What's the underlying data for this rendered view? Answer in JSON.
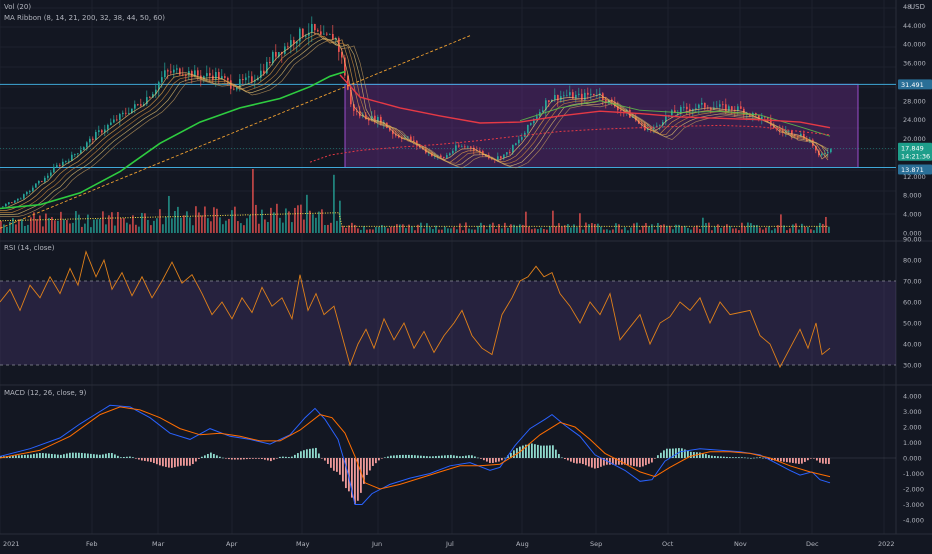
{
  "legend": {
    "vol": "Vol (20)",
    "ma_ribbon": "MA Ribbon (8, 14, 21, 200, 32, 38, 44, 50, 60)",
    "rsi": "RSI (14, close)",
    "macd": "MACD (12, 26, close, 9)"
  },
  "currency": "USD",
  "colors": {
    "background": "#131722",
    "grid": "#1e222d",
    "up": "#26a69a",
    "down": "#ef5350",
    "ma_green": "#2ecc40",
    "ma_red": "#e53945",
    "rsi_line": "#e0801a",
    "macd_line": "#2962ff",
    "signal_line": "#ff6d00",
    "range_box": "#6a2a88",
    "level_line": "#3fa8d8"
  },
  "chart_data": [
    {
      "type": "candlestick",
      "panel": "price",
      "x_labels": [
        "2021",
        "Feb",
        "Mar",
        "Apr",
        "May",
        "Jun",
        "Jul",
        "Aug",
        "Sep",
        "Oct",
        "Nov",
        "Dec",
        "2022"
      ],
      "y_ticks": [
        "48",
        "44.000",
        "40.000",
        "36.000",
        "32.000",
        "28.000",
        "24.000",
        "20.000",
        "16.000",
        "12.000",
        "8.000",
        "4.000",
        "0.000"
      ],
      "ylim": [
        0,
        48
      ],
      "price_points": [
        [
          0,
          5.6
        ],
        [
          10,
          6.5
        ],
        [
          20,
          7.5
        ],
        [
          28,
          8.8
        ],
        [
          36,
          10.5
        ],
        [
          44,
          11.5
        ],
        [
          52,
          13.5
        ],
        [
          60,
          14.8
        ],
        [
          70,
          16.0
        ],
        [
          82,
          18.2
        ],
        [
          96,
          21.0
        ],
        [
          112,
          23.5
        ],
        [
          128,
          26.0
        ],
        [
          140,
          27.5
        ],
        [
          152,
          30.0
        ],
        [
          164,
          33.8
        ],
        [
          180,
          34.5
        ],
        [
          200,
          33.2
        ],
        [
          215,
          33.5
        ],
        [
          232,
          31.2
        ],
        [
          250,
          32.5
        ],
        [
          262,
          34.5
        ],
        [
          274,
          38.0
        ],
        [
          286,
          39.8
        ],
        [
          298,
          42.0
        ],
        [
          310,
          43.2
        ],
        [
          322,
          41.0
        ],
        [
          334,
          41.8
        ],
        [
          342,
          36.0
        ],
        [
          350,
          27.0
        ],
        [
          358,
          25.0
        ],
        [
          368,
          24.5
        ],
        [
          380,
          23.8
        ],
        [
          394,
          20.8
        ],
        [
          408,
          20.0
        ],
        [
          420,
          18.0
        ],
        [
          432,
          16.5
        ],
        [
          442,
          15.8
        ],
        [
          456,
          18.2
        ],
        [
          470,
          18.3
        ],
        [
          484,
          16.5
        ],
        [
          494,
          15.8
        ],
        [
          506,
          16.8
        ],
        [
          520,
          20.0
        ],
        [
          534,
          24.5
        ],
        [
          548,
          28.5
        ],
        [
          564,
          29.2
        ],
        [
          580,
          28.8
        ],
        [
          596,
          29.8
        ],
        [
          610,
          27.5
        ],
        [
          622,
          26.0
        ],
        [
          632,
          24.5
        ],
        [
          640,
          22.8
        ],
        [
          652,
          21.8
        ],
        [
          662,
          24.2
        ],
        [
          676,
          25.8
        ],
        [
          690,
          26.5
        ],
        [
          706,
          27.0
        ],
        [
          722,
          26.5
        ],
        [
          738,
          26.3
        ],
        [
          752,
          25.0
        ],
        [
          766,
          23.8
        ],
        [
          776,
          21.8
        ],
        [
          786,
          21.5
        ],
        [
          798,
          21.0
        ],
        [
          810,
          19.5
        ],
        [
          818,
          16.0
        ],
        [
          826,
          17.5
        ],
        [
          832,
          17.8
        ]
      ],
      "ma_green_points": [
        [
          0,
          5.2
        ],
        [
          40,
          6.0
        ],
        [
          80,
          8.5
        ],
        [
          120,
          13.0
        ],
        [
          160,
          19.0
        ],
        [
          200,
          23.5
        ],
        [
          240,
          26.5
        ],
        [
          280,
          28.5
        ],
        [
          310,
          31.0
        ],
        [
          330,
          33.2
        ],
        [
          345,
          34.2
        ]
      ],
      "ma_red_points": [
        [
          340,
          33.5
        ],
        [
          360,
          28.8
        ],
        [
          400,
          26.5
        ],
        [
          440,
          24.8
        ],
        [
          480,
          23.3
        ],
        [
          520,
          23.5
        ],
        [
          560,
          24.8
        ],
        [
          600,
          25.8
        ],
        [
          640,
          25.3
        ],
        [
          680,
          24.6
        ],
        [
          720,
          24.3
        ],
        [
          760,
          24.0
        ],
        [
          800,
          23.5
        ],
        [
          830,
          22.3
        ]
      ],
      "ma_red_dotted_points": [
        [
          310,
          15.0
        ],
        [
          330,
          16.5
        ],
        [
          360,
          17.5
        ],
        [
          400,
          18.2
        ],
        [
          440,
          18.8
        ],
        [
          480,
          19.6
        ],
        [
          520,
          20.6
        ],
        [
          560,
          21.5
        ],
        [
          600,
          22.0
        ],
        [
          640,
          22.3
        ],
        [
          680,
          22.6
        ],
        [
          720,
          22.8
        ],
        [
          760,
          22.5
        ],
        [
          800,
          21.5
        ],
        [
          830,
          20.8
        ]
      ],
      "trendline": {
        "from": [
          0,
          1.0
        ],
        "to": [
          470,
          41.8
        ],
        "style": "dashed"
      },
      "levels": [
        31.491,
        13.871
      ],
      "range_box": {
        "x_from": 345,
        "x_to": 858,
        "y_low": 13.871,
        "y_high": 31.491
      },
      "price_tags": {
        "upper": "31.491",
        "current": "17.849",
        "countdown": "14:21:36",
        "lower": "13.871"
      }
    },
    {
      "type": "bar",
      "panel": "volume",
      "volume_seed": 7,
      "note_ma": "volume moving average shown as a dotted yellow line"
    },
    {
      "type": "line",
      "panel": "rsi",
      "y_ticks": [
        "90.00",
        "80.00",
        "70.00",
        "60.00",
        "50.00",
        "40.00",
        "30.00"
      ],
      "ylim": [
        24,
        92
      ],
      "levels": [
        70,
        30
      ],
      "rsi_points": [
        [
          0,
          60
        ],
        [
          10,
          66
        ],
        [
          20,
          56
        ],
        [
          30,
          68
        ],
        [
          40,
          62
        ],
        [
          50,
          72
        ],
        [
          60,
          64
        ],
        [
          70,
          76
        ],
        [
          78,
          68
        ],
        [
          86,
          84
        ],
        [
          96,
          72
        ],
        [
          104,
          80
        ],
        [
          112,
          66
        ],
        [
          122,
          74
        ],
        [
          132,
          63
        ],
        [
          142,
          72
        ],
        [
          152,
          62
        ],
        [
          162,
          70
        ],
        [
          172,
          79
        ],
        [
          182,
          69
        ],
        [
          192,
          73
        ],
        [
          202,
          64
        ],
        [
          212,
          54
        ],
        [
          222,
          60
        ],
        [
          232,
          52
        ],
        [
          242,
          62
        ],
        [
          252,
          55
        ],
        [
          262,
          67
        ],
        [
          272,
          58
        ],
        [
          282,
          62
        ],
        [
          292,
          52
        ],
        [
          300,
          73
        ],
        [
          308,
          56
        ],
        [
          316,
          64
        ],
        [
          324,
          54
        ],
        [
          334,
          58
        ],
        [
          342,
          44
        ],
        [
          350,
          30
        ],
        [
          358,
          40
        ],
        [
          366,
          47
        ],
        [
          374,
          38
        ],
        [
          384,
          52
        ],
        [
          394,
          42
        ],
        [
          404,
          50
        ],
        [
          414,
          38
        ],
        [
          424,
          46
        ],
        [
          434,
          36
        ],
        [
          444,
          44
        ],
        [
          454,
          50
        ],
        [
          462,
          56
        ],
        [
          472,
          44
        ],
        [
          482,
          38
        ],
        [
          492,
          35
        ],
        [
          502,
          54
        ],
        [
          512,
          62
        ],
        [
          520,
          70
        ],
        [
          528,
          72
        ],
        [
          536,
          77
        ],
        [
          544,
          72
        ],
        [
          552,
          74
        ],
        [
          560,
          64
        ],
        [
          570,
          58
        ],
        [
          580,
          50
        ],
        [
          590,
          60
        ],
        [
          600,
          54
        ],
        [
          610,
          64
        ],
        [
          620,
          42
        ],
        [
          630,
          48
        ],
        [
          640,
          54
        ],
        [
          650,
          40
        ],
        [
          660,
          50
        ],
        [
          670,
          53
        ],
        [
          680,
          60
        ],
        [
          690,
          56
        ],
        [
          700,
          62
        ],
        [
          710,
          50
        ],
        [
          720,
          60
        ],
        [
          730,
          54
        ],
        [
          740,
          55
        ],
        [
          750,
          56
        ],
        [
          760,
          44
        ],
        [
          770,
          40
        ],
        [
          780,
          29
        ],
        [
          790,
          38
        ],
        [
          800,
          47
        ],
        [
          808,
          38
        ],
        [
          816,
          50
        ],
        [
          822,
          35
        ],
        [
          830,
          38
        ]
      ]
    },
    {
      "type": "line",
      "panel": "macd",
      "y_ticks": [
        "4.000",
        "3.000",
        "2.000",
        "1.000",
        "0.000",
        "-1.000",
        "-2.000",
        "-3.000",
        "-4.000"
      ],
      "ylim": [
        -4.4,
        4.4
      ],
      "series": [
        {
          "name": "",
          "points": [
            [
              0,
              0.1
            ],
            [
              30,
              0.6
            ],
            [
              60,
              1.3
            ],
            [
              80,
              2.2
            ],
            [
              100,
              3.0
            ],
            [
              110,
              3.4
            ],
            [
              130,
              3.3
            ],
            [
              150,
              2.6
            ],
            [
              170,
              1.6
            ],
            [
              190,
              1.2
            ],
            [
              210,
              1.9
            ],
            [
              230,
              1.4
            ],
            [
              250,
              1.2
            ],
            [
              270,
              0.9
            ],
            [
              290,
              1.5
            ],
            [
              305,
              2.6
            ],
            [
              315,
              3.2
            ],
            [
              325,
              2.5
            ],
            [
              338,
              1.2
            ],
            [
              348,
              -1.0
            ],
            [
              355,
              -3.0
            ],
            [
              362,
              -3.0
            ],
            [
              372,
              -2.3
            ],
            [
              390,
              -1.7
            ],
            [
              410,
              -1.3
            ],
            [
              430,
              -1.0
            ],
            [
              450,
              -0.5
            ],
            [
              470,
              -0.3
            ],
            [
              490,
              -0.8
            ],
            [
              500,
              -0.6
            ],
            [
              515,
              0.8
            ],
            [
              530,
              1.9
            ],
            [
              545,
              2.5
            ],
            [
              552,
              2.8
            ],
            [
              565,
              2.1
            ],
            [
              580,
              1.4
            ],
            [
              595,
              0.2
            ],
            [
              610,
              -0.3
            ],
            [
              625,
              -0.8
            ],
            [
              640,
              -1.5
            ],
            [
              652,
              -1.4
            ],
            [
              665,
              -0.2
            ],
            [
              680,
              0.4
            ],
            [
              700,
              0.6
            ],
            [
              720,
              0.5
            ],
            [
              740,
              0.4
            ],
            [
              760,
              0.2
            ],
            [
              775,
              -0.3
            ],
            [
              790,
              -0.8
            ],
            [
              800,
              -1.1
            ],
            [
              812,
              -0.9
            ],
            [
              820,
              -1.4
            ],
            [
              830,
              -1.6
            ]
          ]
        },
        {
          "name": "",
          "points": [
            [
              0,
              0.0
            ],
            [
              40,
              0.5
            ],
            [
              70,
              1.4
            ],
            [
              100,
              2.8
            ],
            [
              120,
              3.3
            ],
            [
              140,
              3.1
            ],
            [
              160,
              2.6
            ],
            [
              180,
              1.9
            ],
            [
              200,
              1.5
            ],
            [
              220,
              1.6
            ],
            [
              240,
              1.4
            ],
            [
              260,
              1.1
            ],
            [
              280,
              1.1
            ],
            [
              300,
              1.8
            ],
            [
              320,
              2.8
            ],
            [
              332,
              2.6
            ],
            [
              345,
              1.6
            ],
            [
              355,
              0.1
            ],
            [
              365,
              -1.6
            ],
            [
              380,
              -2.0
            ],
            [
              400,
              -1.7
            ],
            [
              420,
              -1.3
            ],
            [
              440,
              -0.9
            ],
            [
              460,
              -0.5
            ],
            [
              480,
              -0.5
            ],
            [
              500,
              -0.4
            ],
            [
              520,
              0.4
            ],
            [
              540,
              1.5
            ],
            [
              560,
              2.3
            ],
            [
              575,
              2.0
            ],
            [
              590,
              1.2
            ],
            [
              605,
              0.3
            ],
            [
              620,
              -0.2
            ],
            [
              640,
              -0.9
            ],
            [
              655,
              -1.2
            ],
            [
              670,
              -0.6
            ],
            [
              690,
              0.1
            ],
            [
              710,
              0.4
            ],
            [
              730,
              0.4
            ],
            [
              750,
              0.3
            ],
            [
              770,
              0.0
            ],
            [
              790,
              -0.5
            ],
            [
              810,
              -0.9
            ],
            [
              830,
              -1.2
            ]
          ]
        }
      ]
    }
  ]
}
